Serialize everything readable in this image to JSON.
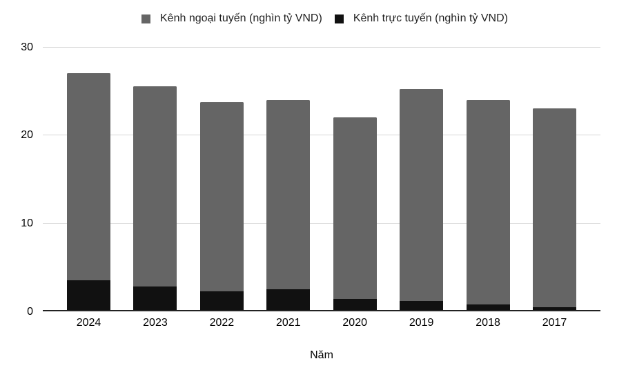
{
  "chart_data": {
    "type": "bar",
    "stacked": true,
    "title": "",
    "xlabel": "Năm",
    "ylabel": "",
    "categories": [
      "2024",
      "2023",
      "2022",
      "2021",
      "2020",
      "2019",
      "2018",
      "2017"
    ],
    "series": [
      {
        "key": "offline",
        "name": "Kênh ngoại tuyến (nghìn tỷ VND)",
        "color": "#656565",
        "values": [
          23.5,
          22.7,
          21.4,
          21.5,
          20.6,
          24.0,
          23.2,
          22.5
        ]
      },
      {
        "key": "online",
        "name": "Kênh trực tuyến (nghìn tỷ VND)",
        "color": "#111111",
        "values": [
          3.5,
          2.8,
          2.3,
          2.5,
          1.4,
          1.2,
          0.8,
          0.5
        ]
      }
    ],
    "stack_order_bottom_to_top": [
      "online",
      "offline"
    ],
    "totals": [
      27.0,
      25.5,
      23.7,
      24.0,
      22.0,
      25.2,
      24.0,
      23.0
    ],
    "ylim": [
      0,
      30
    ],
    "yticks": [
      0,
      10,
      20,
      30
    ],
    "legend_position": "top",
    "grid": true,
    "colors": {
      "gridline": "#d6d6d6",
      "axis_line": "#222222",
      "tick_text": "#000000",
      "legend_text": "#1f1f1f",
      "background": "#ffffff"
    }
  }
}
